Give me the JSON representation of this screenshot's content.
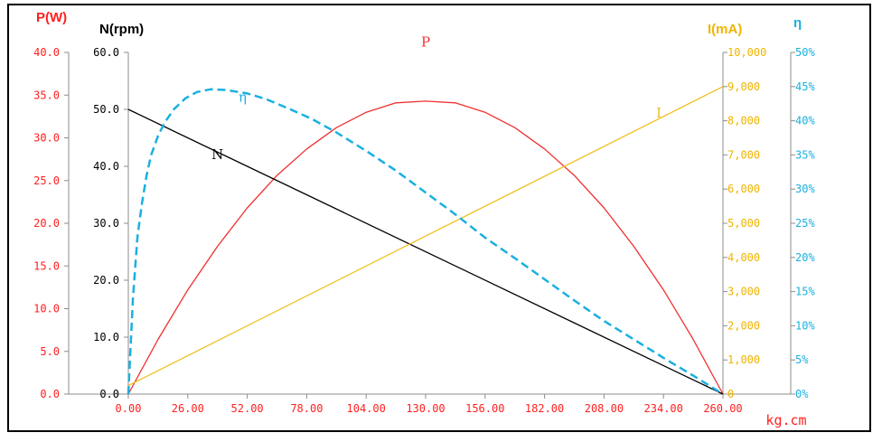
{
  "chart_data": {
    "type": "line",
    "xlabel": "kg.cm",
    "x_ticks": [
      "0.00",
      "26.00",
      "52.00",
      "78.00",
      "104.00",
      "130.00",
      "156.00",
      "182.00",
      "208.00",
      "234.00",
      "260.00"
    ],
    "xlim": [
      0,
      260
    ],
    "axes": {
      "power": {
        "title": "P(W)",
        "ylim": [
          0,
          40
        ],
        "ticks": [
          "0.0",
          "5.0",
          "10.0",
          "15.0",
          "20.0",
          "25.0",
          "30.0",
          "35.0",
          "40.0"
        ],
        "color": "#ff2020"
      },
      "speed": {
        "title": "N(rpm)",
        "ylim": [
          0,
          60
        ],
        "ticks": [
          "0.0",
          "10.0",
          "20.0",
          "30.0",
          "40.0",
          "50.0",
          "60.0"
        ],
        "color": "#000000"
      },
      "current": {
        "title": "I(mA)",
        "ylim": [
          0,
          10000
        ],
        "ticks": [
          "0",
          "1,000",
          "2,000",
          "3,000",
          "4,000",
          "5,000",
          "6,000",
          "7,000",
          "8,000",
          "9,000",
          "10,000"
        ],
        "color": "#f0b400"
      },
      "efficiency": {
        "title": "η",
        "ylim": [
          0,
          50
        ],
        "ticks": [
          "0%",
          "5%",
          "10%",
          "15%",
          "20%",
          "25%",
          "30%",
          "35%",
          "40%",
          "45%",
          "50%"
        ],
        "color": "#1ab0e0"
      }
    },
    "series": [
      {
        "name": "P",
        "axis": "power",
        "color": "#f03030",
        "dashed": false,
        "x": [
          0,
          13,
          26,
          39,
          52,
          65,
          78,
          91,
          104,
          117,
          130,
          143,
          156,
          169,
          182,
          195,
          208,
          221,
          234,
          247,
          260
        ],
        "y": [
          0,
          6.4,
          12.2,
          17.3,
          21.8,
          25.6,
          28.7,
          31.2,
          33.0,
          34.1,
          34.3,
          34.1,
          33.0,
          31.2,
          28.7,
          25.6,
          21.8,
          17.3,
          12.2,
          6.4,
          0
        ],
        "label_x": 130,
        "label_y": 40.7
      },
      {
        "name": "N",
        "axis": "speed",
        "color": "#000000",
        "dashed": false,
        "x": [
          0,
          260
        ],
        "y": [
          50,
          0
        ],
        "label_x": 39,
        "label_y": 41.3
      },
      {
        "name": "I",
        "axis": "current",
        "color": "#f0c020",
        "dashed": false,
        "x": [
          0,
          260
        ],
        "y": [
          250,
          9000
        ],
        "label_x": 232,
        "label_y": 8100
      },
      {
        "name": "η",
        "axis": "efficiency",
        "color": "#1ab0e0",
        "dashed": true,
        "x": [
          0,
          2,
          4,
          6,
          8,
          10,
          13,
          16,
          20,
          25,
          30,
          36,
          43,
          52,
          60,
          70,
          80,
          91,
          104,
          117,
          130,
          143,
          156,
          169,
          182,
          195,
          208,
          221,
          234,
          247,
          260
        ],
        "y": [
          0,
          14,
          23,
          28,
          32,
          35,
          37.8,
          39.8,
          41.7,
          43.3,
          44.2,
          44.6,
          44.5,
          44.0,
          43.2,
          41.8,
          40.3,
          38.3,
          35.6,
          32.7,
          29.5,
          26.3,
          22.9,
          19.9,
          16.8,
          13.7,
          10.7,
          8.0,
          5.3,
          2.7,
          0
        ],
        "label_x": 50,
        "label_y": 42.8
      }
    ],
    "grid": false,
    "legend": "none"
  }
}
